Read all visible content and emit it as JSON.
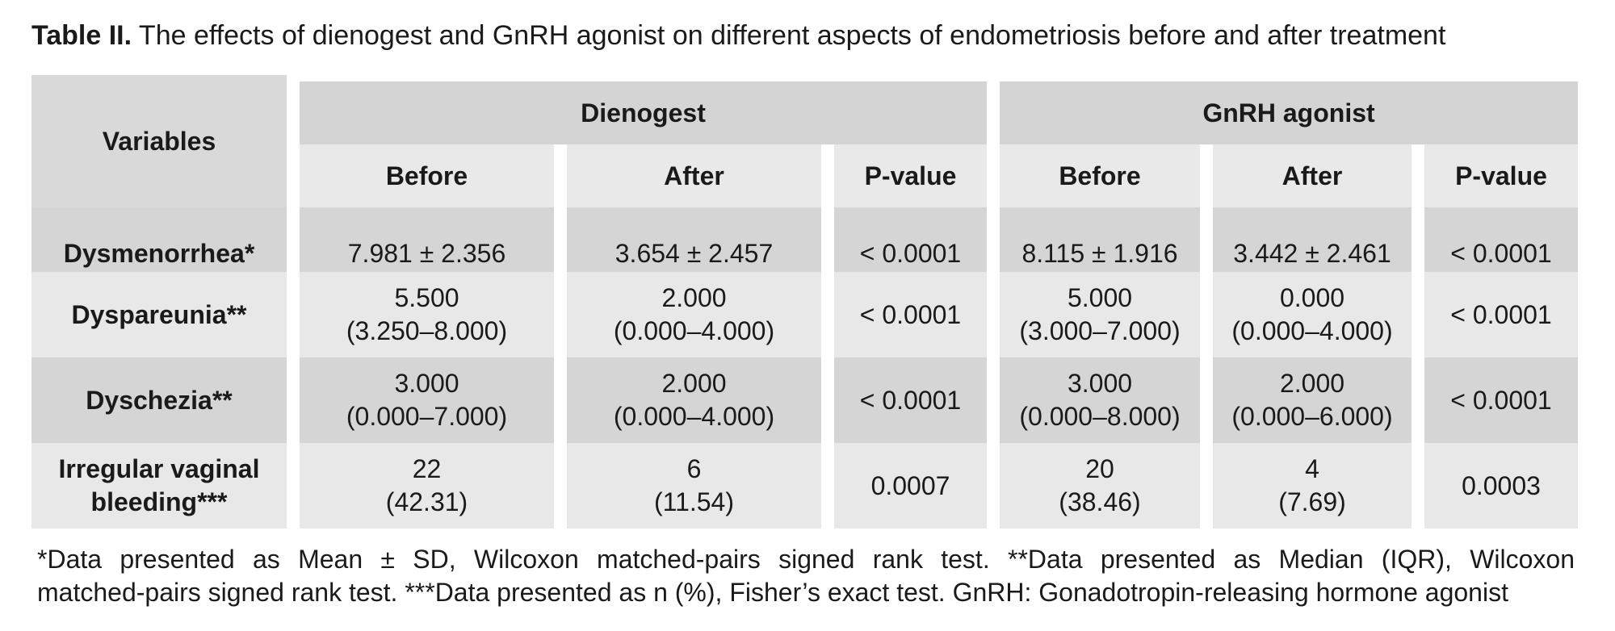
{
  "title": {
    "label": "Table II.",
    "text": "The effects of dienogest and GnRH agonist on different aspects of endometriosis before and after treatment"
  },
  "table": {
    "variables_header": "Variables",
    "groups": [
      "Dienogest",
      "GnRH agonist"
    ],
    "subheaders": [
      "Before",
      "After",
      "P-value",
      "Before",
      "After",
      "P-value"
    ],
    "rows": [
      {
        "label": "Dysmenorrhea*",
        "cells": [
          [
            "7.981 ± 2.356"
          ],
          [
            "3.654 ± 2.457"
          ],
          [
            "< 0.0001"
          ],
          [
            "8.115 ± 1.916"
          ],
          [
            "3.442 ± 2.461"
          ],
          [
            "< 0.0001"
          ]
        ]
      },
      {
        "label": "Dyspareunia**",
        "cells": [
          [
            "5.500",
            "(3.250–8.000)"
          ],
          [
            "2.000",
            "(0.000–4.000)"
          ],
          [
            "< 0.0001"
          ],
          [
            "5.000",
            "(3.000–7.000)"
          ],
          [
            "0.000",
            "(0.000–4.000)"
          ],
          [
            "< 0.0001"
          ]
        ]
      },
      {
        "label": "Dyschezia**",
        "cells": [
          [
            "3.000",
            "(0.000–7.000)"
          ],
          [
            "2.000",
            "(0.000–4.000)"
          ],
          [
            "< 0.0001"
          ],
          [
            "3.000",
            "(0.000–8.000)"
          ],
          [
            "2.000",
            "(0.000–6.000)"
          ],
          [
            "< 0.0001"
          ]
        ]
      },
      {
        "label_lines": [
          "Irregular vaginal",
          "bleeding***"
        ],
        "cells": [
          [
            "22",
            "(42.31)"
          ],
          [
            "6",
            "(11.54)"
          ],
          [
            "0.0007"
          ],
          [
            "20",
            "(38.46)"
          ],
          [
            "4",
            "(7.69)"
          ],
          [
            "0.0003"
          ]
        ]
      }
    ]
  },
  "footnote": {
    "line1": "*Data presented as Mean ± SD, Wilcoxon matched-pairs signed rank test. **Data presented as Median (IQR), Wilcoxon",
    "line2": "matched-pairs signed rank test. ***Data presented as n (%), Fisher’s exact test. GnRH: Gonadotropin-releasing hormone agonist"
  }
}
